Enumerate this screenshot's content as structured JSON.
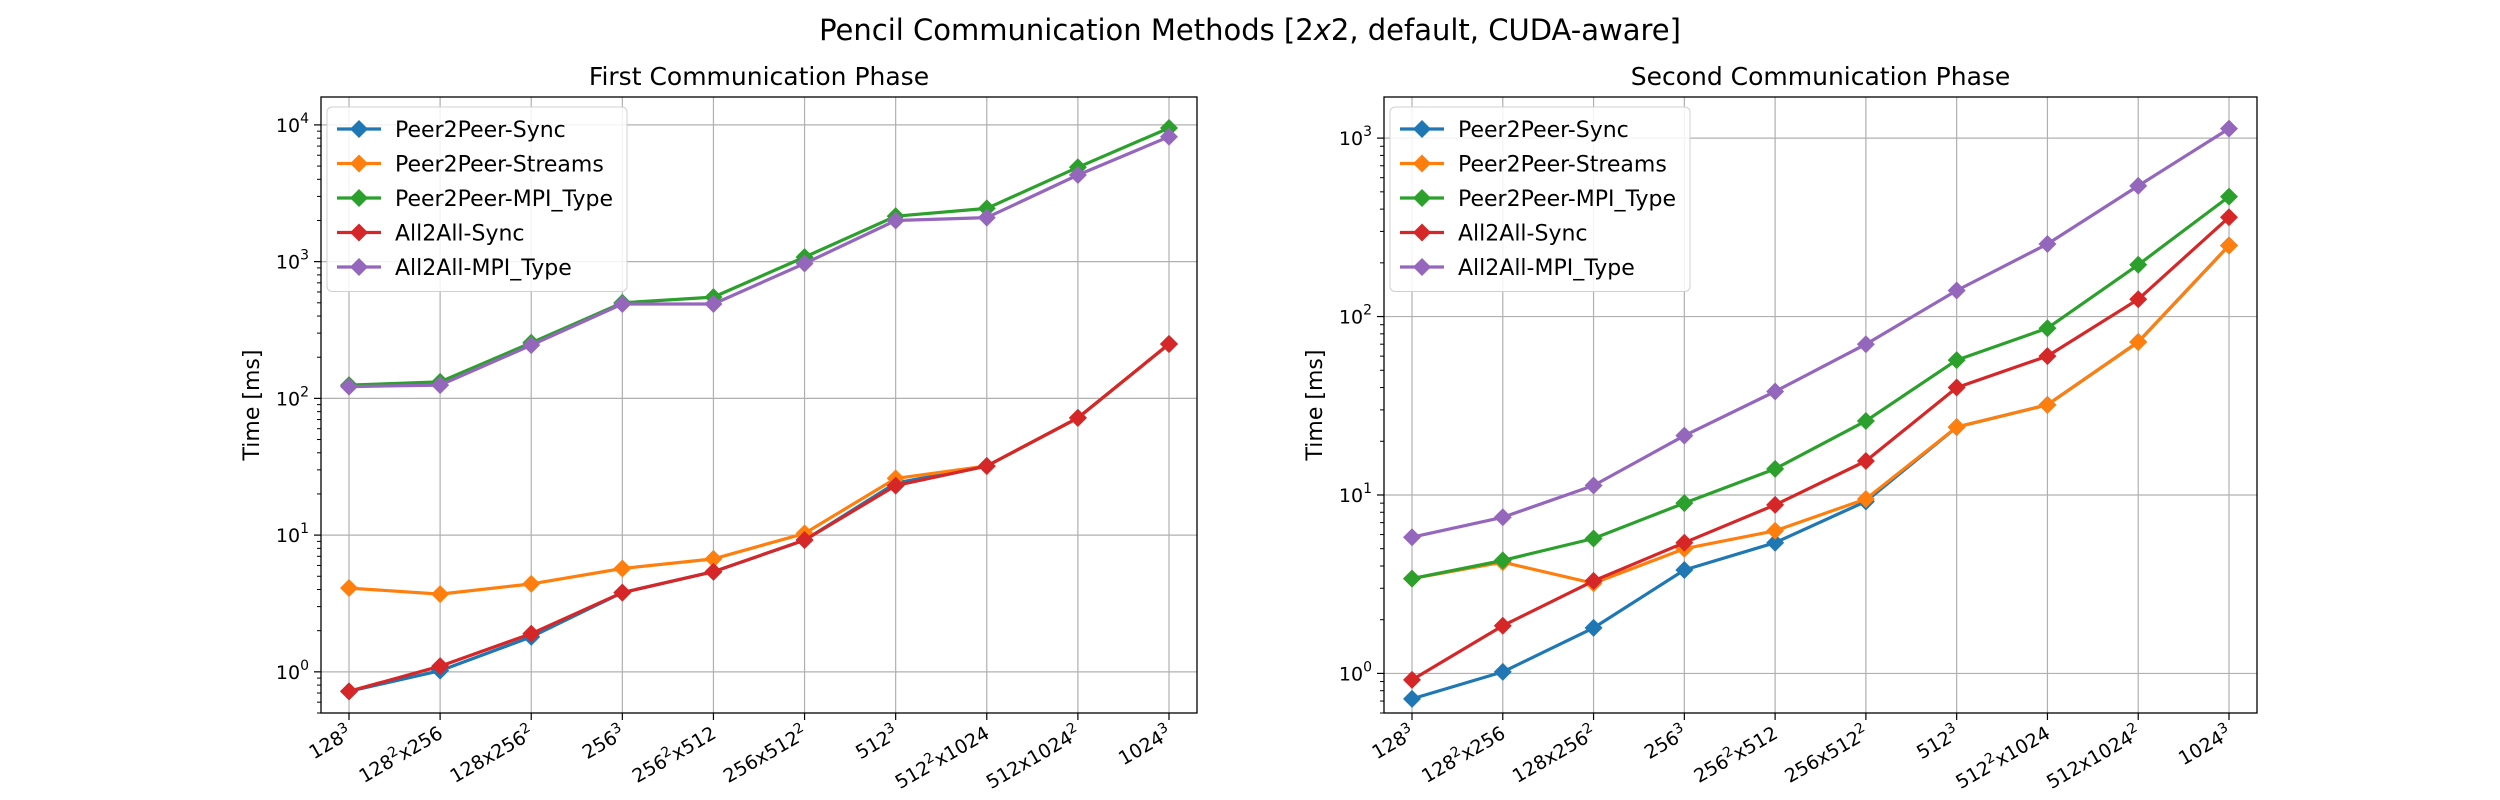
{
  "figure": {
    "title": "Pencil Communication Methods [2x2, default, CUDA-aware]"
  },
  "chart_data": [
    {
      "type": "line",
      "title": "First Communication Phase",
      "xlabel": "",
      "ylabel": "Time [ms]",
      "yscale": "log",
      "ylim": [
        0.5,
        16000
      ],
      "grid": true,
      "legend": "top-left",
      "categories": [
        {
          "base": "128",
          "sup": "3",
          "rest": ""
        },
        {
          "base": "128",
          "sup": "2",
          "rest": "x256"
        },
        {
          "base": "128x256",
          "sup": "2",
          "rest": ""
        },
        {
          "base": "256",
          "sup": "3",
          "rest": ""
        },
        {
          "base": "256",
          "sup": "2",
          "rest": "x512"
        },
        {
          "base": "256x512",
          "sup": "2",
          "rest": ""
        },
        {
          "base": "512",
          "sup": "3",
          "rest": ""
        },
        {
          "base": "512",
          "sup": "2",
          "rest": "x1024"
        },
        {
          "base": "512x1024",
          "sup": "2",
          "rest": ""
        },
        {
          "base": "1024",
          "sup": "3",
          "rest": ""
        }
      ],
      "series": [
        {
          "name": "Peer2Peer-Sync",
          "color": "#1f77b4",
          "values": [
            0.72,
            1.02,
            1.8,
            3.8,
            5.4,
            9.2,
            24,
            32,
            72,
            250
          ]
        },
        {
          "name": "Peer2Peer-Streams",
          "color": "#ff7f0e",
          "values": [
            4.1,
            3.7,
            4.4,
            5.7,
            6.7,
            10.3,
            26,
            32,
            72,
            250
          ]
        },
        {
          "name": "Peer2Peer-MPI_Type",
          "color": "#2ca02c",
          "values": [
            125,
            132,
            255,
            500,
            550,
            1080,
            2150,
            2450,
            4900,
            9500
          ]
        },
        {
          "name": "All2All-Sync",
          "color": "#d62728",
          "values": [
            0.72,
            1.1,
            1.9,
            3.8,
            5.4,
            9.2,
            23,
            32,
            72,
            250
          ]
        },
        {
          "name": "All2All-MPI_Type",
          "color": "#9467bd",
          "values": [
            122,
            125,
            245,
            490,
            490,
            970,
            2000,
            2100,
            4300,
            8200
          ]
        }
      ]
    },
    {
      "type": "line",
      "title": "Second Communication Phase",
      "xlabel": "",
      "ylabel": "Time [ms]",
      "yscale": "log",
      "ylim": [
        0.6,
        1700
      ],
      "grid": true,
      "legend": "top-left",
      "categories": [
        {
          "base": "128",
          "sup": "3",
          "rest": ""
        },
        {
          "base": "128",
          "sup": "2",
          "rest": "x256"
        },
        {
          "base": "128x256",
          "sup": "2",
          "rest": ""
        },
        {
          "base": "256",
          "sup": "3",
          "rest": ""
        },
        {
          "base": "256",
          "sup": "2",
          "rest": "x512"
        },
        {
          "base": "256x512",
          "sup": "2",
          "rest": ""
        },
        {
          "base": "512",
          "sup": "3",
          "rest": ""
        },
        {
          "base": "512",
          "sup": "2",
          "rest": "x1024"
        },
        {
          "base": "512x1024",
          "sup": "2",
          "rest": ""
        },
        {
          "base": "1024",
          "sup": "3",
          "rest": ""
        }
      ],
      "series": [
        {
          "name": "Peer2Peer-Sync",
          "color": "#1f77b4",
          "values": [
            0.72,
            1.02,
            1.8,
            3.8,
            5.4,
            9.2,
            24,
            32,
            72,
            250
          ]
        },
        {
          "name": "Peer2Peer-Streams",
          "color": "#ff7f0e",
          "values": [
            3.4,
            4.2,
            3.2,
            5.0,
            6.3,
            9.5,
            24,
            32,
            72,
            250
          ]
        },
        {
          "name": "Peer2Peer-MPI_Type",
          "color": "#2ca02c",
          "values": [
            3.4,
            4.3,
            5.7,
            9.0,
            14,
            26,
            57,
            86,
            195,
            470
          ]
        },
        {
          "name": "All2All-Sync",
          "color": "#d62728",
          "values": [
            0.92,
            1.85,
            3.3,
            5.4,
            8.8,
            15.5,
            40,
            60,
            125,
            360
          ]
        },
        {
          "name": "All2All-MPI_Type",
          "color": "#9467bd",
          "values": [
            5.8,
            7.5,
            11.3,
            21.5,
            38,
            70,
            140,
            255,
            540,
            1130
          ]
        }
      ]
    }
  ]
}
